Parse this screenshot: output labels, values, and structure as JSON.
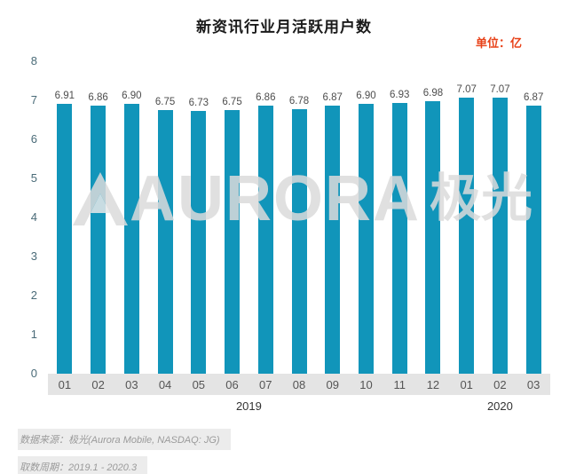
{
  "title": "新资讯行业月活跃用户数",
  "unit_label": "单位：亿",
  "colors": {
    "bar_color": "#1195ba",
    "unit_label_color": "#e84118"
  },
  "chart_data": {
    "type": "bar",
    "title": "新资讯行业月活跃用户数",
    "unit": "单位：亿",
    "categories": [
      "01",
      "02",
      "03",
      "04",
      "05",
      "06",
      "07",
      "08",
      "09",
      "10",
      "11",
      "12",
      "01",
      "02",
      "03"
    ],
    "values": [
      6.91,
      6.86,
      6.9,
      6.75,
      6.73,
      6.75,
      6.86,
      6.78,
      6.87,
      6.9,
      6.93,
      6.98,
      7.07,
      7.07,
      6.87
    ],
    "year_groups": [
      {
        "label": "2019",
        "count": 12
      },
      {
        "label": "2020",
        "count": 3
      }
    ],
    "ylim": [
      0,
      8
    ],
    "yticks": [
      0,
      1,
      2,
      3,
      4,
      5,
      6,
      7,
      8
    ],
    "bar_color": "#1195ba",
    "grid": false,
    "legend": "none"
  },
  "watermark": {
    "logo": "aurora-mountain-logo",
    "text_en": "AURORA",
    "text_zh": "极光"
  },
  "footer": {
    "source": "数据来源：极光(Aurora Mobile, NASDAQ: JG)",
    "period": "取数周期：2019.1 - 2020.3"
  }
}
